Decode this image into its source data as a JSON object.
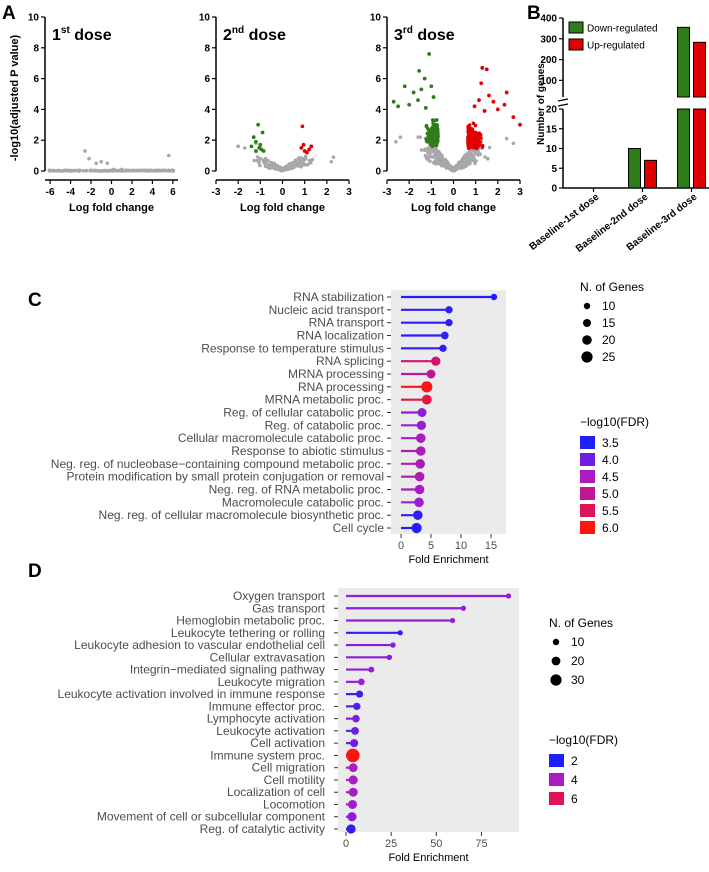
{
  "panel_labels": {
    "a": "A",
    "b": "B",
    "c": "C",
    "d": "D"
  },
  "colors": {
    "down": "#2e7d1a",
    "up": "#e00000",
    "ns": "#a8a8a8",
    "bg": "#ebebeb"
  },
  "chart_data": [
    {
      "id": "volcano",
      "type": "scatter",
      "ylabel": "-log10(adjusted P value)",
      "yticks": [
        0,
        2,
        4,
        6,
        8,
        10
      ],
      "ylim": [
        0,
        10
      ],
      "plots": [
        {
          "title": "1st dose",
          "title_base": "1",
          "title_sup": "st",
          "title_rest": " dose",
          "xlabel": "Log fold change",
          "xlim": [
            -6.5,
            6.5
          ],
          "xticks": [
            -6,
            -4,
            -2,
            0,
            2,
            4,
            6
          ],
          "x_spread": 6.0,
          "y_scale": 0.05,
          "n_ns": 120,
          "extra_points": [
            [
              -2.6,
              1.3
            ],
            [
              -2.2,
              0.8
            ],
            [
              -1.5,
              0.5
            ],
            [
              -1.0,
              0.6
            ],
            [
              -0.4,
              0.5
            ],
            [
              5.6,
              1.0
            ],
            [
              0.2,
              0.1
            ],
            [
              1.0,
              0.1
            ]
          ],
          "n_down": 0,
          "n_up": 0
        },
        {
          "title": "2nd dose",
          "title_base": "2",
          "title_sup": "nd",
          "title_rest": " dose",
          "xlabel": "Log fold change",
          "xlim": [
            -3,
            3
          ],
          "xticks": [
            -3,
            -2,
            -1,
            0,
            1,
            2,
            3
          ],
          "x_spread": 2.2,
          "y_scale": 0.9,
          "n_ns": 260,
          "extra_points": [
            [
              -2.0,
              1.6
            ],
            [
              -1.7,
              1.5
            ],
            [
              2.3,
              0.9
            ],
            [
              2.2,
              0.6
            ],
            [
              -1.2,
              1.8
            ]
          ],
          "down_points": [
            [
              -1.1,
              3.0
            ],
            [
              -1.3,
              2.2
            ],
            [
              -0.9,
              2.5
            ],
            [
              -1.0,
              1.7
            ],
            [
              -1.4,
              1.6
            ],
            [
              -1.2,
              1.3
            ],
            [
              -0.95,
              1.4
            ],
            [
              -1.05,
              1.5
            ],
            [
              -1.2,
              1.9
            ],
            [
              -0.85,
              1.3
            ]
          ],
          "up_points": [
            [
              0.9,
              2.9
            ],
            [
              0.85,
              1.5
            ],
            [
              1.0,
              1.3
            ],
            [
              1.2,
              1.4
            ],
            [
              0.95,
              1.7
            ],
            [
              1.1,
              1.2
            ],
            [
              1.3,
              1.6
            ]
          ],
          "n_down": 10,
          "n_up": 7
        },
        {
          "title": "3rd dose",
          "title_base": "3",
          "title_sup": "rd",
          "title_rest": " dose",
          "xlabel": "Log fold change",
          "xlim": [
            -3,
            3
          ],
          "xticks": [
            -3,
            -2,
            -1,
            0,
            1,
            2,
            3
          ],
          "x_spread": 2.4,
          "y_scale": 1.6,
          "n_ns": 520,
          "extra_points": [
            [
              -2.4,
              2.2
            ],
            [
              -2.6,
              1.9
            ],
            [
              2.4,
              2.1
            ],
            [
              2.7,
              1.8
            ]
          ],
          "down_points_hi": [
            [
              -1.1,
              7.6
            ],
            [
              -1.55,
              6.5
            ],
            [
              -1.3,
              6.0
            ],
            [
              -2.2,
              5.5
            ],
            [
              -1.8,
              5.1
            ],
            [
              -1.0,
              5.5
            ],
            [
              -2.7,
              4.5
            ],
            [
              -2.5,
              4.2
            ],
            [
              -0.9,
              4.8
            ],
            [
              -1.6,
              4.6
            ],
            [
              -2.0,
              4.3
            ],
            [
              -1.25,
              4.1
            ],
            [
              -1.45,
              5.3
            ]
          ],
          "up_points_hi": [
            [
              1.3,
              6.7
            ],
            [
              1.5,
              6.6
            ],
            [
              1.25,
              5.7
            ],
            [
              2.4,
              5.1
            ],
            [
              1.8,
              4.5
            ],
            [
              1.6,
              4.9
            ],
            [
              0.95,
              4.2
            ],
            [
              1.15,
              4.6
            ],
            [
              2.0,
              4.0
            ],
            [
              2.3,
              4.3
            ],
            [
              3.0,
              3.0
            ],
            [
              2.7,
              3.5
            ],
            [
              1.4,
              3.9
            ]
          ],
          "n_down": 355,
          "n_up": 283
        }
      ]
    },
    {
      "id": "barB",
      "type": "bar",
      "ylabel": "Number of genes",
      "categories": [
        "Baseline-1st dose",
        "Baseline-2nd dose",
        "Baseline-3rd dose"
      ],
      "series": [
        {
          "name": "Down-regulated",
          "values": [
            0,
            10,
            355
          ]
        },
        {
          "name": "Up-regulated",
          "values": [
            0,
            7,
            283
          ]
        }
      ],
      "y_segments": {
        "lower": [
          0,
          20
        ],
        "upper": [
          20,
          400
        ]
      },
      "yticks_lower": [
        0,
        5,
        10,
        15,
        20
      ],
      "yticks_upper": [
        100,
        200,
        300,
        400
      ]
    },
    {
      "id": "lollipopC",
      "type": "lollipop",
      "xlabel": "Fold Enrichment",
      "xlim": [
        0,
        16.5
      ],
      "xticks": [
        0,
        5,
        10,
        15
      ],
      "size_legend_title": "N. of Genes",
      "size_legend": [
        10,
        15,
        20,
        25
      ],
      "color_legend_title": "−log10(FDR)",
      "color_legend": [
        "3.5",
        "4.0",
        "4.5",
        "5.0",
        "5.5",
        "6.0"
      ],
      "color_range": [
        3.5,
        6.0
      ],
      "size_range": [
        10,
        25
      ],
      "terms": [
        {
          "label": "RNA stabilization",
          "value": 15.5,
          "fdr": 3.5,
          "genes": 10
        },
        {
          "label": "Nucleic acid transport",
          "value": 8.0,
          "fdr": 3.6,
          "genes": 13
        },
        {
          "label": "RNA transport",
          "value": 8.0,
          "fdr": 3.6,
          "genes": 13
        },
        {
          "label": "RNA localization",
          "value": 7.3,
          "fdr": 3.6,
          "genes": 14
        },
        {
          "label": "Response to temperature stimulus",
          "value": 7.0,
          "fdr": 3.6,
          "genes": 13
        },
        {
          "label": "RNA splicing",
          "value": 5.8,
          "fdr": 5.3,
          "genes": 19
        },
        {
          "label": "MRNA processing",
          "value": 5.0,
          "fdr": 4.9,
          "genes": 18
        },
        {
          "label": "RNA processing",
          "value": 4.3,
          "fdr": 6.0,
          "genes": 25
        },
        {
          "label": "MRNA metabolic proc.",
          "value": 4.3,
          "fdr": 5.6,
          "genes": 21
        },
        {
          "label": "Reg. of cellular catabolic proc.",
          "value": 3.5,
          "fdr": 4.2,
          "genes": 18
        },
        {
          "label": "Reg. of catabolic proc.",
          "value": 3.4,
          "fdr": 4.3,
          "genes": 19
        },
        {
          "label": "Cellular macromolecule catabolic proc.",
          "value": 3.3,
          "fdr": 4.5,
          "genes": 20
        },
        {
          "label": "Response to abiotic stimulus",
          "value": 3.3,
          "fdr": 4.6,
          "genes": 20
        },
        {
          "label": "Neg. reg. of nucleobase−containing compound metabolic proc.",
          "value": 3.2,
          "fdr": 4.6,
          "genes": 20
        },
        {
          "label": "Protein modification by small protein conjugation or removal",
          "value": 3.1,
          "fdr": 4.7,
          "genes": 20
        },
        {
          "label": "Neg. reg. of RNA metabolic proc.",
          "value": 3.1,
          "fdr": 4.5,
          "genes": 20
        },
        {
          "label": "Macromolecule catabolic proc.",
          "value": 3.0,
          "fdr": 4.3,
          "genes": 20
        },
        {
          "label": "Neg. reg. of cellular macromolecule biosynthetic proc.",
          "value": 2.8,
          "fdr": 3.6,
          "genes": 20
        },
        {
          "label": "Cell cycle",
          "value": 2.6,
          "fdr": 3.5,
          "genes": 22
        }
      ]
    },
    {
      "id": "lollipopD",
      "type": "lollipop",
      "xlabel": "Fold Enrichment",
      "xlim": [
        0,
        93
      ],
      "xticks": [
        0,
        25,
        50,
        75
      ],
      "size_legend_title": "N. of Genes",
      "size_legend": [
        10,
        20,
        30
      ],
      "color_legend_title": "−log10(FDR)",
      "color_legend": [
        "2",
        "4",
        "6"
      ],
      "color_range": [
        2,
        7
      ],
      "size_range": [
        5,
        35
      ],
      "terms": [
        {
          "label": "Oxygen transport",
          "value": 90,
          "fdr": 3.5,
          "genes": 4
        },
        {
          "label": "Gas transport",
          "value": 65,
          "fdr": 3.5,
          "genes": 4
        },
        {
          "label": "Hemoglobin metabolic proc.",
          "value": 59,
          "fdr": 3.5,
          "genes": 4
        },
        {
          "label": "Leukocyte tethering or rolling",
          "value": 30,
          "fdr": 2.2,
          "genes": 5
        },
        {
          "label": "Leukocyte adhesion to vascular endothelial cell",
          "value": 26,
          "fdr": 3.4,
          "genes": 6
        },
        {
          "label": "Cellular extravasation",
          "value": 24,
          "fdr": 3.4,
          "genes": 6
        },
        {
          "label": "Integrin−mediated signaling pathway",
          "value": 14,
          "fdr": 3.5,
          "genes": 8
        },
        {
          "label": "Leukocyte migration",
          "value": 8.5,
          "fdr": 3.6,
          "genes": 11
        },
        {
          "label": "Leukocyte activation involved in immune response",
          "value": 7.5,
          "fdr": 2.4,
          "genes": 13
        },
        {
          "label": "Immune effector proc.",
          "value": 6,
          "fdr": 2.6,
          "genes": 14
        },
        {
          "label": "Lymphocyte activation",
          "value": 5.5,
          "fdr": 3.2,
          "genes": 15
        },
        {
          "label": "Leukocyte activation",
          "value": 5,
          "fdr": 3.0,
          "genes": 16
        },
        {
          "label": "Cell activation",
          "value": 4.5,
          "fdr": 3.0,
          "genes": 17
        },
        {
          "label": "Immune system proc.",
          "value": 3.8,
          "fdr": 7.0,
          "genes": 40
        },
        {
          "label": "Cell migration",
          "value": 4,
          "fdr": 4.0,
          "genes": 20
        },
        {
          "label": "Cell motility",
          "value": 4,
          "fdr": 4.0,
          "genes": 21
        },
        {
          "label": "Localization of cell",
          "value": 4,
          "fdr": 4.0,
          "genes": 21
        },
        {
          "label": "Locomotion",
          "value": 3.6,
          "fdr": 3.8,
          "genes": 21
        },
        {
          "label": "Movement of cell or subcellular component",
          "value": 3.3,
          "fdr": 3.4,
          "genes": 22
        },
        {
          "label": "Reg. of catalytic activity",
          "value": 2.8,
          "fdr": 2.3,
          "genes": 22
        }
      ]
    }
  ]
}
